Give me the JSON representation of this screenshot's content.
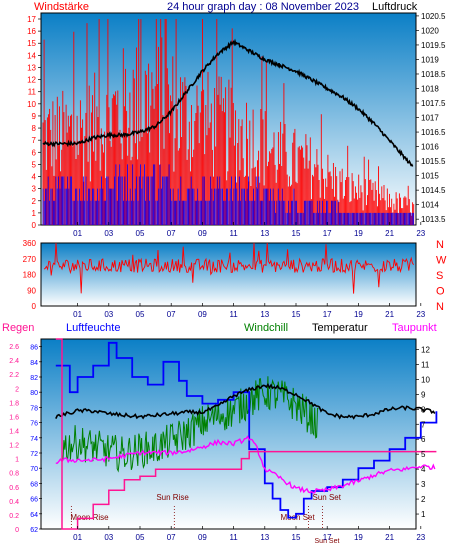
{
  "header": {
    "left_label": "Windstärke",
    "center_title": "24 hour graph day : 08 November 2023",
    "right_label": "Luftdruck"
  },
  "colors": {
    "wind": "#ff0000",
    "gust": "#0000ff",
    "pressure": "#000000",
    "direction": "#ff0000",
    "rain": "#ff1493",
    "humidity": "#0000ff",
    "windchill": "#008000",
    "temperature": "#000000",
    "dewpoint": "#ff00ff",
    "plot_bg_top": "#0b7fc6",
    "plot_bg_bottom": "#ffffff"
  },
  "chart_data": [
    {
      "type": "line",
      "panel": "wind-pressure",
      "x_ticks": [
        "01",
        "03",
        "05",
        "07",
        "09",
        "11",
        "13",
        "15",
        "17",
        "19",
        "21",
        "23"
      ],
      "left_axis": {
        "label": "Windstärke",
        "ticks": [
          0,
          1,
          2,
          3,
          4,
          5,
          6,
          7,
          8,
          9,
          10,
          11,
          12,
          13,
          14,
          15,
          16,
          17
        ],
        "ylim": [
          0,
          17
        ]
      },
      "right_axis": {
        "label": "Luftdruck",
        "ticks": [
          "1013.5",
          "1014",
          "1014.5",
          "1015",
          "1015.5",
          "1016",
          "1016.5",
          "1017",
          "1017.5",
          "1018",
          "1018.5",
          "1019",
          "1019.5",
          "1020",
          "1020.5"
        ],
        "ylim": [
          1013.3,
          1020.6
        ]
      },
      "series": [
        {
          "key": "pressure",
          "x": [
            0,
            1,
            2,
            3,
            4,
            5,
            6,
            7,
            8,
            9,
            10,
            11,
            12,
            13,
            14,
            15,
            16,
            17,
            18,
            19,
            20,
            21,
            22,
            23,
            24
          ],
          "y": [
            1016.1,
            1016.1,
            1016.3,
            1016.4,
            1016.4,
            1016.5,
            1016.7,
            1017.2,
            1017.9,
            1018.6,
            1019.2,
            1019.6,
            1019.3,
            1019.0,
            1018.8,
            1018.6,
            1018.3,
            1018.0,
            1017.7,
            1017.3,
            1016.8,
            1016.2,
            1015.6,
            1015.0,
            1014.5
          ]
        },
        {
          "key": "wind",
          "x": [
            0,
            2,
            4,
            6,
            8,
            10,
            12,
            14,
            16,
            18,
            20,
            22,
            24
          ],
          "y": [
            9,
            10,
            12,
            13,
            11,
            10,
            9,
            7,
            6,
            4,
            3,
            2,
            1
          ]
        },
        {
          "key": "gust",
          "x": [
            0,
            2,
            4,
            6,
            8,
            10,
            12,
            14,
            16,
            18,
            20,
            22,
            24
          ],
          "y": [
            3,
            3,
            4,
            4,
            3,
            3,
            3,
            2,
            2,
            1,
            1,
            1,
            1
          ]
        }
      ]
    },
    {
      "type": "scatter",
      "panel": "wind-direction",
      "x_ticks": [
        "01",
        "03",
        "05",
        "07",
        "09",
        "11",
        "13",
        "15",
        "17",
        "19",
        "21",
        "23"
      ],
      "left_axis": {
        "ticks": [
          0,
          90,
          180,
          270,
          360
        ],
        "ylim": [
          0,
          360
        ]
      },
      "right_axis": {
        "ticks": [
          "N",
          "W",
          "S",
          "O",
          "N"
        ]
      },
      "series": [
        {
          "key": "direction",
          "mean": 230,
          "spread": 40
        }
      ]
    },
    {
      "type": "line",
      "panel": "humidity-temperature",
      "x_ticks": [
        "01",
        "03",
        "05",
        "07",
        "09",
        "11",
        "13",
        "15",
        "17",
        "19",
        "21",
        "23"
      ],
      "legend": [
        {
          "key": "rain",
          "label": "Regen"
        },
        {
          "key": "humidity",
          "label": "Luftfeuchte"
        },
        {
          "key": "windchill",
          "label": "Windchill"
        },
        {
          "key": "temperature",
          "label": "Temperatur"
        },
        {
          "key": "dewpoint",
          "label": "Taupunkt"
        }
      ],
      "rain_axis": {
        "ticks": [
          "0",
          "0.2",
          "0.4",
          "0.6",
          "0.8",
          "1",
          "1.2",
          "1.4",
          "1.6",
          "1.8",
          "2",
          "2.2",
          "2.4",
          "2.6"
        ],
        "ylim": [
          0,
          2.7
        ]
      },
      "humidity_axis": {
        "ticks": [
          "62",
          "64",
          "66",
          "68",
          "70",
          "72",
          "74",
          "76",
          "78",
          "80",
          "82",
          "84",
          "86"
        ],
        "ylim": [
          62,
          87
        ]
      },
      "temperature_axis": {
        "ticks": [
          "1",
          "2",
          "3",
          "4",
          "5",
          "6",
          "7",
          "8",
          "9",
          "10",
          "11",
          "12"
        ],
        "ylim": [
          0,
          12.7
        ]
      },
      "annotations": [
        {
          "label": "Moon Rise",
          "x": 0.6
        },
        {
          "label": "Sun Rise",
          "x": 7.2
        },
        {
          "label": "Moon Set",
          "x": 15.8
        },
        {
          "label": "Sun Set",
          "x": 16.7
        }
      ],
      "series": [
        {
          "key": "rain",
          "x": [
            -0.4,
            0.0,
            1.0,
            2.0,
            3.0,
            4.0,
            5.0,
            6.0,
            9.0,
            11.5,
            12.0,
            16.0,
            20.0,
            24.0
          ],
          "y": [
            2.7,
            0.0,
            0.15,
            0.35,
            0.55,
            0.7,
            0.75,
            0.85,
            0.85,
            1.0,
            1.1,
            1.1,
            1.1,
            1.1
          ]
        },
        {
          "key": "humidity",
          "x": [
            -0.4,
            0.5,
            1.0,
            2.0,
            3.0,
            3.5,
            4.5,
            5.5,
            6.5,
            7.5,
            8.0,
            9.0,
            10.0,
            11.0,
            12.0,
            13.0,
            13.5,
            14.0,
            14.5,
            15.0,
            15.5,
            16.0,
            16.5,
            17.0,
            18.0,
            19.0,
            20.0,
            21.0,
            22.0,
            23.0,
            24.0
          ],
          "y": [
            83.5,
            80.0,
            82.0,
            83.5,
            86.5,
            84.5,
            82.0,
            81.0,
            84.0,
            81.5,
            79.5,
            78.5,
            79.0,
            80.0,
            72.5,
            68.0,
            66.0,
            64.5,
            63.5,
            64.0,
            66.0,
            67.0,
            67.0,
            67.5,
            68.5,
            70.0,
            71.0,
            72.5,
            74.0,
            76.0,
            77.5
          ]
        },
        {
          "key": "windchill",
          "x": [
            0,
            1,
            2,
            3,
            4,
            5,
            6,
            7,
            8,
            9,
            10,
            11,
            12,
            13,
            14,
            15,
            16,
            16.5
          ],
          "y": [
            5.5,
            5.8,
            5.5,
            5.2,
            5.0,
            5.3,
            5.4,
            5.9,
            6.4,
            7.1,
            7.6,
            7.9,
            8.6,
            9.1,
            8.9,
            8.3,
            7.4,
            6.8
          ]
        },
        {
          "key": "temperature",
          "x": [
            -0.4,
            1,
            2,
            3,
            4,
            5,
            6,
            7,
            8,
            9,
            10,
            11,
            12,
            13,
            14,
            15,
            16,
            17,
            18,
            19,
            20,
            21,
            22,
            23,
            24
          ],
          "y": [
            7.5,
            7.9,
            7.9,
            7.7,
            7.6,
            7.5,
            7.6,
            7.7,
            7.8,
            7.8,
            8.2,
            8.9,
            9.3,
            9.6,
            9.4,
            9.0,
            8.4,
            7.7,
            7.5,
            7.5,
            7.7,
            8.0,
            8.1,
            8.0,
            7.8
          ]
        },
        {
          "key": "dewpoint",
          "x": [
            -0.4,
            0,
            1,
            2,
            3,
            4,
            5,
            6,
            7,
            8,
            9,
            10,
            11,
            12,
            12.5,
            13,
            14,
            15,
            16,
            17,
            18,
            19,
            20,
            21,
            22,
            23,
            24
          ],
          "y": [
            4.4,
            4.6,
            4.6,
            4.6,
            4.7,
            4.9,
            5.1,
            5.1,
            5.1,
            5.2,
            5.5,
            5.8,
            5.7,
            6.1,
            5.4,
            4.0,
            3.4,
            2.7,
            2.5,
            2.6,
            2.9,
            3.2,
            3.6,
            3.9,
            4.0,
            4.2,
            4.1
          ]
        }
      ]
    }
  ]
}
